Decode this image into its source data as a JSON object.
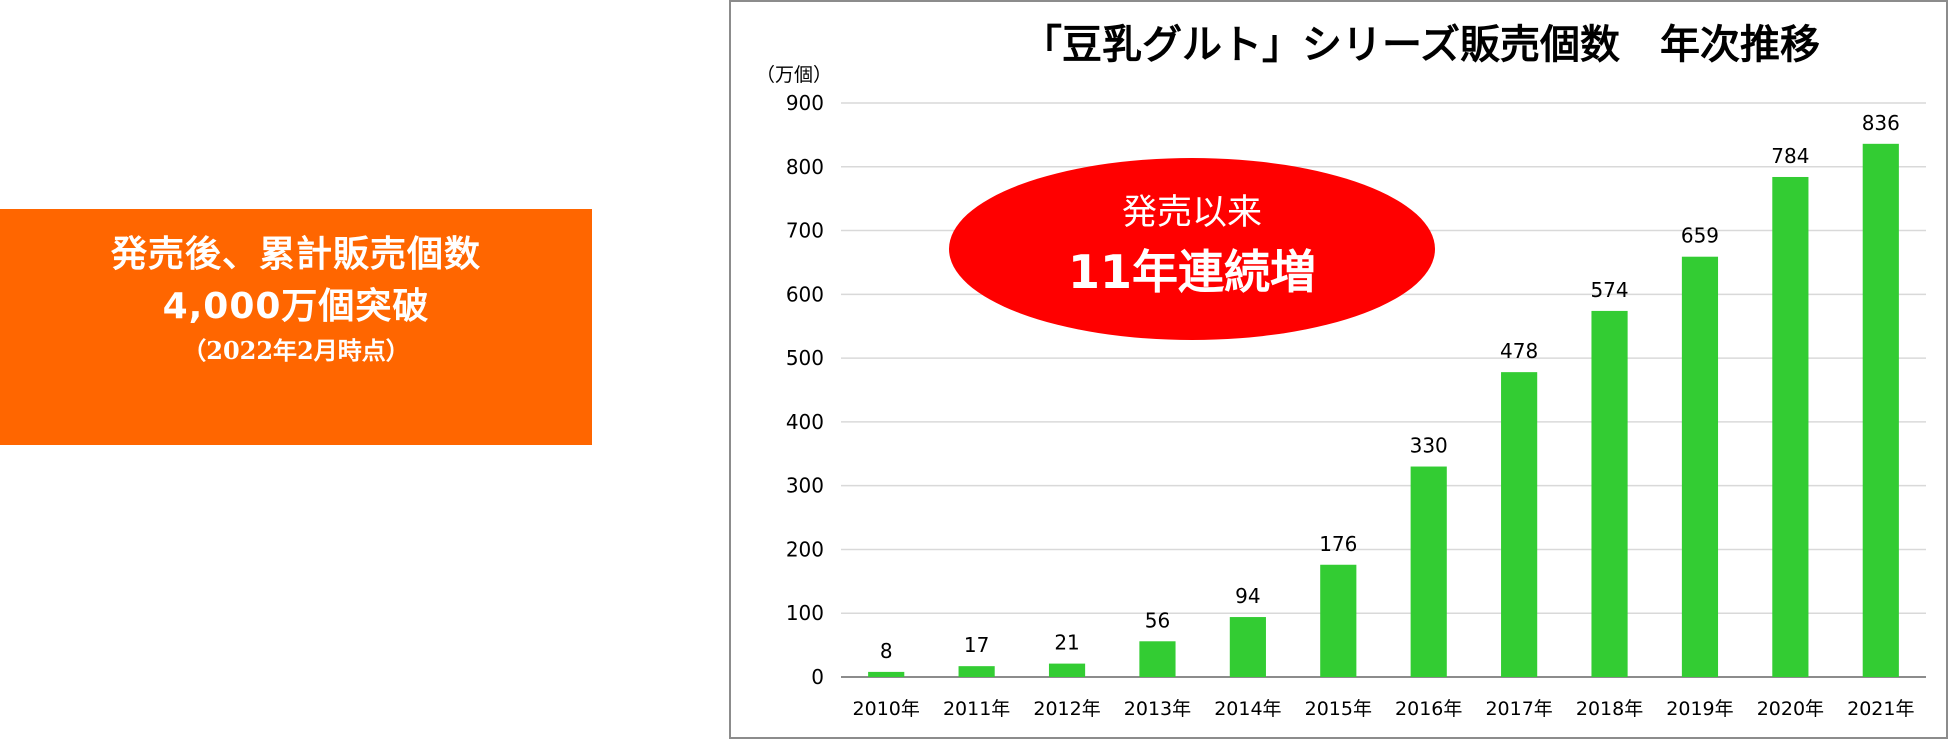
{
  "promo": {
    "line1": "発売後、累計販売個数",
    "line2": "4,000万個突破",
    "line3": "（2022年2月時点）",
    "background_color": "#ff6600"
  },
  "callout": {
    "line1": "発売以来",
    "line2": "11年連続増",
    "color": "#ff0000"
  },
  "chart_data": {
    "type": "bar",
    "title": "「豆乳グルト」シリーズ販売個数　年次推移",
    "unit_label": "（万個）",
    "xlabel": "",
    "ylabel": "",
    "categories": [
      "2010年",
      "2011年",
      "2012年",
      "2013年",
      "2014年",
      "2015年",
      "2016年",
      "2017年",
      "2018年",
      "2019年",
      "2020年",
      "2021年"
    ],
    "values": [
      8,
      17,
      21,
      56,
      94,
      176,
      330,
      478,
      574,
      659,
      784,
      836
    ],
    "ylim": [
      0,
      900
    ],
    "yticks": [
      0,
      100,
      200,
      300,
      400,
      500,
      600,
      700,
      800,
      900
    ],
    "grid": true,
    "bar_color": "#33cc33",
    "data_labels": true
  }
}
